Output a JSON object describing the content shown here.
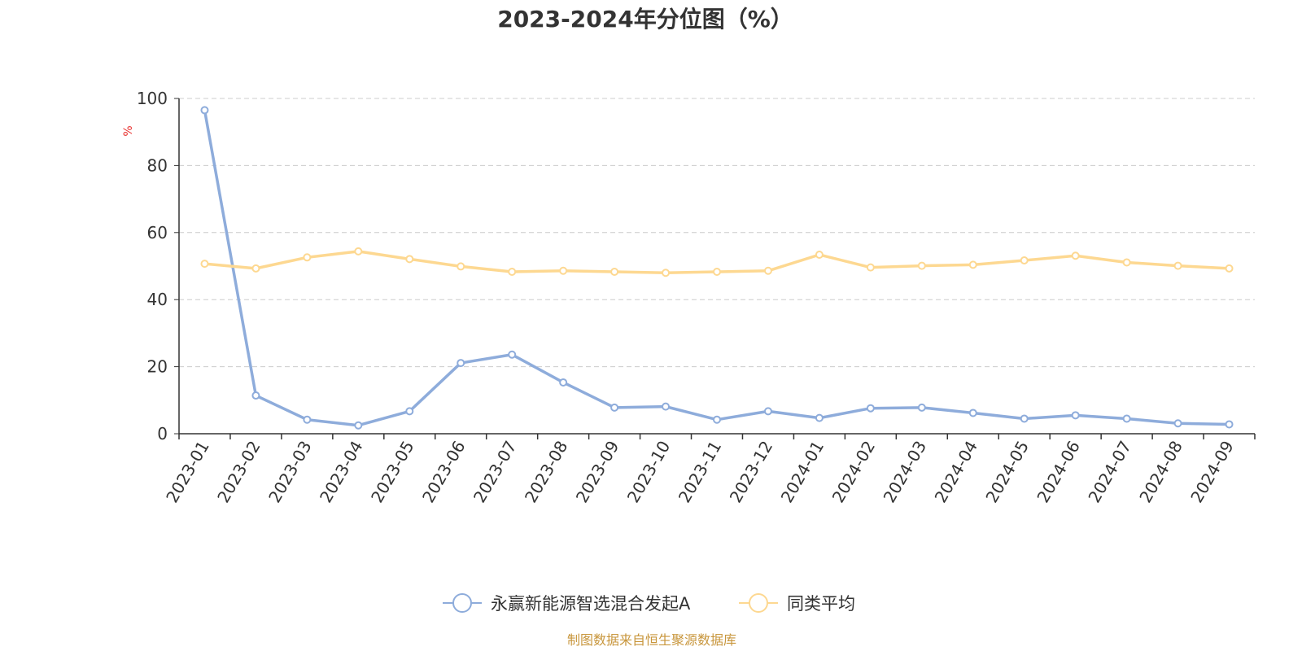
{
  "chart_data": {
    "type": "line",
    "title": "2023-2024年分位图（%）",
    "ylabel": "%",
    "xlabel": "",
    "ylim": [
      0,
      100
    ],
    "yticks": [
      0,
      20,
      40,
      60,
      80,
      100
    ],
    "grid": true,
    "legend_position": "bottom",
    "categories": [
      "2023-01",
      "2023-02",
      "2023-03",
      "2023-04",
      "2023-05",
      "2023-06",
      "2023-07",
      "2023-08",
      "2023-09",
      "2023-10",
      "2023-11",
      "2023-12",
      "2024-01",
      "2024-02",
      "2024-03",
      "2024-04",
      "2024-05",
      "2024-06",
      "2024-07",
      "2024-08",
      "2024-09"
    ],
    "series": [
      {
        "name": "永赢新能源智选混合发起A",
        "color": "#8eacdb",
        "values": [
          96.5,
          11.4,
          4.2,
          2.5,
          6.7,
          21.1,
          23.6,
          15.3,
          7.8,
          8.1,
          4.2,
          6.7,
          4.7,
          7.6,
          7.8,
          6.2,
          4.5,
          5.5,
          4.5,
          3.1,
          2.8
        ]
      },
      {
        "name": "同类平均",
        "color": "#fdd891",
        "values": [
          50.7,
          49.3,
          52.6,
          54.4,
          52.1,
          49.9,
          48.3,
          48.6,
          48.3,
          48.0,
          48.3,
          48.6,
          53.4,
          49.6,
          50.1,
          50.4,
          51.7,
          53.1,
          51.1,
          50.1,
          49.3
        ]
      }
    ]
  },
  "colors": {
    "title": "#333333",
    "axis": "#333333",
    "grid": "#cccccc",
    "y_unit": "#e8302e",
    "source": "#c8963c"
  },
  "source_text": "制图数据来自恒生聚源数据库"
}
